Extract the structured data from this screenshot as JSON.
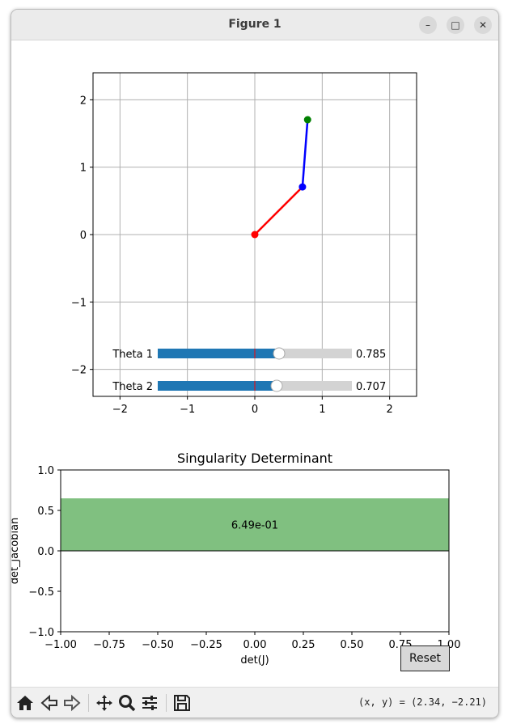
{
  "window": {
    "title": "Figure 1",
    "minimize_icon": "minimize-icon",
    "maximize_icon": "maximize-icon",
    "close_icon": "close-icon"
  },
  "arm_plot": {
    "x_ticks": [
      "−2",
      "−1",
      "0",
      "1",
      "2"
    ],
    "y_ticks": [
      "2",
      "1",
      "0",
      "−1",
      "−2"
    ],
    "xlim": [
      -2.4,
      2.4
    ],
    "ylim": [
      -2.4,
      2.4
    ],
    "grid": true,
    "joints": [
      {
        "name": "base",
        "x": 0,
        "y": 0,
        "color": "#ff0000"
      },
      {
        "name": "elbow",
        "x": 0.707,
        "y": 0.707,
        "color": "#0000ff"
      },
      {
        "name": "end_effector",
        "x": 0.783,
        "y": 1.704,
        "color": "#008000"
      }
    ],
    "links": [
      {
        "from": 0,
        "to": 1,
        "color": "#ff0000"
      },
      {
        "from": 1,
        "to": 2,
        "color": "#0000ff"
      }
    ]
  },
  "sliders": [
    {
      "label": "Theta 1",
      "value": 0.785,
      "value_text": "0.785",
      "min": -3.14,
      "max": 3.14,
      "init": 0,
      "fill_color": "#1f77b4"
    },
    {
      "label": "Theta 2",
      "value": 0.707,
      "value_text": "0.707",
      "min": -3.14,
      "max": 3.14,
      "init": 0,
      "fill_color": "#1f77b4"
    }
  ],
  "chart_data": {
    "type": "bar",
    "title": "Singularity Determinant",
    "xlabel": "det(J)",
    "ylabel": "det_jacobian",
    "xlim": [
      -1.0,
      1.0
    ],
    "ylim": [
      -1.0,
      1.0
    ],
    "x_ticks": [
      "−1.00",
      "−0.75",
      "−0.50",
      "−0.25",
      "0.00",
      "0.25",
      "0.50",
      "0.75",
      "1.00"
    ],
    "y_ticks": [
      "1.0",
      "0.5",
      "0.0",
      "−0.5",
      "−1.0"
    ],
    "values": [
      0.649
    ],
    "value_label": "6.49e-01",
    "bar_color": "#80c080",
    "grid": false
  },
  "reset_button": {
    "label": "Reset"
  },
  "toolbar": {
    "icons": [
      "home-icon",
      "back-icon",
      "forward-icon",
      "pan-icon",
      "zoom-icon",
      "configure-subplots-icon",
      "save-icon"
    ],
    "coords": "(x, y) = (2.34, −2.21)"
  }
}
